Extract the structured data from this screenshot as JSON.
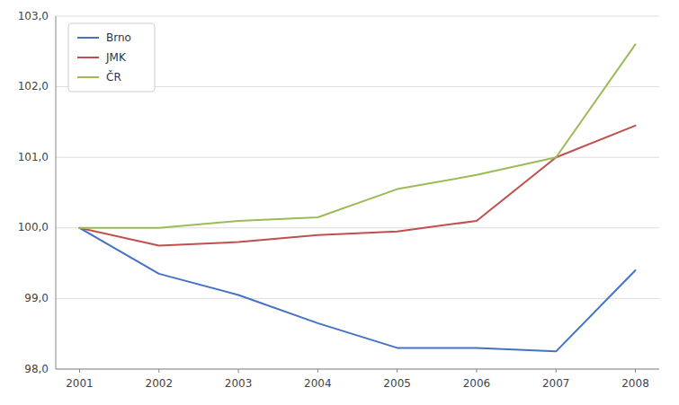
{
  "chart_data": {
    "type": "line",
    "x": [
      2001,
      2002,
      2003,
      2004,
      2005,
      2006,
      2007,
      2008
    ],
    "xlim": [
      2000.7,
      2008.3
    ],
    "xticks": [
      2001,
      2002,
      2003,
      2004,
      2005,
      2006,
      2007,
      2008
    ],
    "ylim": [
      98.0,
      103.0
    ],
    "yticks": [
      {
        "value": 98.0,
        "label": "98,0"
      },
      {
        "value": 99.0,
        "label": "99,0"
      },
      {
        "value": 100.0,
        "label": "100,0"
      },
      {
        "value": 101.0,
        "label": "101,0"
      },
      {
        "value": 102.0,
        "label": "102,0"
      },
      {
        "value": 103.0,
        "label": "103,0"
      }
    ],
    "series": [
      {
        "name": "Brno",
        "color": "#4472C4",
        "values": [
          100.0,
          99.35,
          99.05,
          98.65,
          98.3,
          98.3,
          98.25,
          99.4
        ]
      },
      {
        "name": "JMK",
        "color": "#C0504D",
        "values": [
          100.0,
          99.75,
          99.8,
          99.9,
          99.95,
          100.1,
          101.0,
          101.45
        ]
      },
      {
        "name": "ČR",
        "color": "#9BBB59",
        "values": [
          100.0,
          100.0,
          100.1,
          100.15,
          100.55,
          100.75,
          101.0,
          102.6
        ]
      }
    ],
    "grid": true,
    "legend": "upper left"
  }
}
